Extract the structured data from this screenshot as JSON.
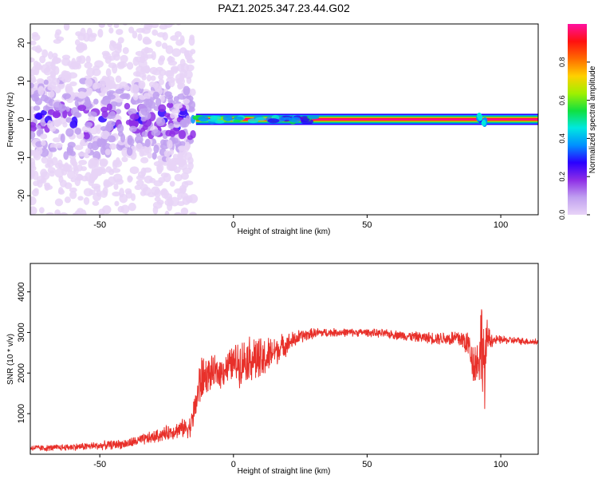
{
  "title": "PAZ1.2025.347.23.44.G02",
  "chart_data": [
    {
      "type": "heatmap",
      "xlabel": "Height of straight line (km)",
      "ylabel": "Frequency (Hz)",
      "xlim": [
        -76,
        114
      ],
      "ylim": [
        -25,
        25
      ],
      "xticks": [
        -50,
        0,
        50,
        100
      ],
      "yticks": [
        -20,
        -10,
        0,
        10,
        20
      ],
      "colorbar": {
        "label": "Normalized spectral amplitude",
        "range": [
          0.0,
          1.0
        ],
        "ticks": [
          0.0,
          0.2,
          0.4,
          0.6,
          0.8
        ],
        "tick_labels": [
          "0.0",
          "0.2",
          "0.4",
          "0.6",
          "0.8"
        ],
        "colormap": [
          "#e8d4f7",
          "#c0a0f0",
          "#8e2ee6",
          "#2b00ff",
          "#0090ff",
          "#00e8e0",
          "#10e040",
          "#a0f000",
          "#ffd000",
          "#ff6a00",
          "#ff1010",
          "#ff10a0"
        ]
      },
      "features": [
        {
          "name": "scattered noise",
          "x_range": [
            -76,
            -15
          ],
          "freq_range": [
            -25,
            25
          ],
          "amplitude": 0.15
        },
        {
          "name": "carrier line",
          "x_range": [
            -14,
            114
          ],
          "freq": 0,
          "amplitude": 1.0
        },
        {
          "name": "multipath burst",
          "x": 93,
          "freq": 0,
          "amplitude": 0.45
        }
      ]
    },
    {
      "type": "line",
      "xlabel": "Height of straight line (km)",
      "ylabel": "SNR (10 * v/v)",
      "xlim": [
        -76,
        114
      ],
      "ylim": [
        0,
        4700
      ],
      "xticks": [
        -50,
        0,
        50,
        100
      ],
      "yticks": [
        1000,
        2000,
        3000,
        4000
      ],
      "series": [
        {
          "name": "SNR",
          "color": "#e8302a",
          "x": [
            -76,
            -70,
            -60,
            -50,
            -40,
            -30,
            -25,
            -20,
            -16,
            -14,
            -13,
            -12,
            -10,
            -5,
            0,
            2,
            5,
            8,
            10,
            15,
            20,
            25,
            30,
            35,
            40,
            50,
            60,
            70,
            80,
            85,
            88,
            90,
            92,
            93,
            94,
            95,
            97,
            100,
            110,
            114
          ],
          "mean": [
            160,
            150,
            180,
            210,
            260,
            420,
            520,
            620,
            680,
            1250,
            1650,
            1850,
            1950,
            2020,
            2250,
            2250,
            2350,
            2380,
            2250,
            2520,
            2720,
            2900,
            2980,
            3000,
            3000,
            3000,
            2950,
            2880,
            2850,
            2850,
            2700,
            2200,
            2400,
            2900,
            2000,
            2900,
            2800,
            2820,
            2780,
            2760
          ],
          "noise_amplitude": [
            90,
            90,
            100,
            120,
            140,
            180,
            200,
            250,
            300,
            500,
            700,
            700,
            500,
            450,
            500,
            650,
            600,
            700,
            700,
            450,
            300,
            200,
            150,
            120,
            120,
            110,
            130,
            150,
            200,
            300,
            400,
            600,
            800,
            1400,
            1100,
            500,
            150,
            120,
            100,
            100
          ]
        }
      ]
    }
  ]
}
